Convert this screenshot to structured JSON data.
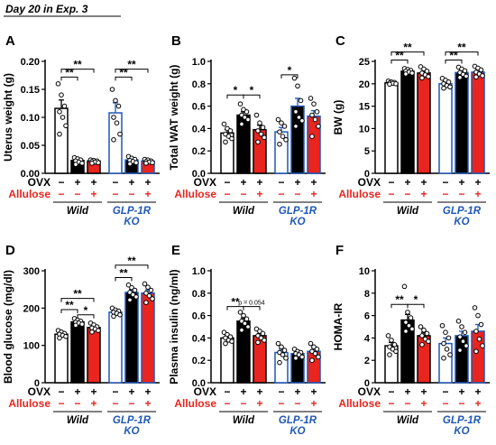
{
  "header": {
    "title": "Day 20 in Exp. 3"
  },
  "labels": {
    "ovx": "OVX",
    "allulose": "Allulose"
  },
  "genotypes": [
    "Wild",
    "GLP-1R\nKO"
  ],
  "conditions": {
    "ovx": [
      "−",
      "+",
      "+",
      "−",
      "+",
      "+"
    ],
    "allulose": [
      "−",
      "−",
      "+",
      "−",
      "−",
      "+"
    ]
  },
  "colors": {
    "ovx_label": "#000000",
    "allulose_label": "#e8251e",
    "wild_edge": "#000000",
    "ko_edge": "#1f57b8",
    "sham_fill": "#ffffff",
    "ovx_fill": "#000000",
    "allulose_fill": "#e8251e"
  },
  "chart_data": [
    {
      "type": "bar",
      "panel": "A",
      "ylabel": "Uterus weight (g)",
      "ylim": [
        0,
        0.2
      ],
      "yticks": [
        "0.00",
        "0.05",
        "0.10",
        "0.15",
        "0.20"
      ],
      "values": [
        0.116,
        0.023,
        0.022,
        0.108,
        0.024,
        0.022
      ],
      "sem": [
        0.015,
        0.003,
        0.001,
        0.018,
        0.003,
        0.001
      ],
      "points": [
        [
          0.16,
          0.14,
          0.12,
          0.11,
          0.1,
          0.085,
          0.07
        ],
        [
          0.028,
          0.026,
          0.024,
          0.022,
          0.02,
          0.018,
          0.016
        ],
        [
          0.024,
          0.023,
          0.022,
          0.021,
          0.02,
          0.019,
          0.018
        ],
        [
          0.15,
          0.13,
          0.12,
          0.1,
          0.09,
          0.07,
          0.06
        ],
        [
          0.03,
          0.027,
          0.025,
          0.023,
          0.021,
          0.019,
          0.017
        ],
        [
          0.025,
          0.024,
          0.022,
          0.021,
          0.02,
          0.019,
          0.018
        ]
      ],
      "significance": [
        {
          "from": 0,
          "to": 1,
          "y": 0.172,
          "label": "**"
        },
        {
          "from": 0,
          "to": 2,
          "y": 0.186,
          "label": "**"
        },
        {
          "from": 3,
          "to": 4,
          "y": 0.172,
          "label": "**"
        },
        {
          "from": 3,
          "to": 5,
          "y": 0.186,
          "label": "**"
        }
      ]
    },
    {
      "type": "bar",
      "panel": "B",
      "ylabel": "Total WAT weight (g)",
      "ylim": [
        0,
        1.0
      ],
      "yticks": [
        "0.0",
        "0.2",
        "0.4",
        "0.6",
        "0.8",
        "1.0"
      ],
      "values": [
        0.36,
        0.52,
        0.39,
        0.37,
        0.6,
        0.51
      ],
      "sem": [
        0.03,
        0.03,
        0.04,
        0.04,
        0.07,
        0.05
      ],
      "points": [
        [
          0.44,
          0.4,
          0.38,
          0.35,
          0.33,
          0.31,
          0.28
        ],
        [
          0.62,
          0.57,
          0.55,
          0.52,
          0.5,
          0.48,
          0.44
        ],
        [
          0.52,
          0.45,
          0.41,
          0.38,
          0.35,
          0.32,
          0.28
        ],
        [
          0.48,
          0.45,
          0.42,
          0.37,
          0.33,
          0.3,
          0.26
        ],
        [
          0.85,
          0.78,
          0.65,
          0.55,
          0.5,
          0.47,
          0.42
        ],
        [
          0.67,
          0.62,
          0.55,
          0.52,
          0.48,
          0.42,
          0.33
        ]
      ],
      "significance": [
        {
          "from": 0,
          "to": 1,
          "y": 0.7,
          "label": "*"
        },
        {
          "from": 1,
          "to": 2,
          "y": 0.7,
          "label": "*"
        },
        {
          "from": 3,
          "to": 4,
          "y": 0.88,
          "label": "*"
        }
      ]
    },
    {
      "type": "bar",
      "panel": "C",
      "ylabel": "BW (g)",
      "ylim": [
        0,
        25
      ],
      "yticks": [
        "0",
        "5",
        "10",
        "15",
        "20",
        "25"
      ],
      "values": [
        20.2,
        22.8,
        22.4,
        20.0,
        22.5,
        22.6
      ],
      "sem": [
        0.3,
        0.3,
        0.4,
        0.5,
        0.5,
        0.5
      ],
      "points": [
        [
          20.6,
          20.4,
          20.3,
          20.2,
          20.1,
          20.0,
          19.9
        ],
        [
          23.4,
          23.2,
          23.0,
          22.8,
          22.6,
          22.4,
          22.2
        ],
        [
          23.8,
          23.3,
          22.8,
          22.4,
          22.0,
          21.6,
          21.3
        ],
        [
          21.2,
          20.8,
          20.4,
          20.0,
          19.6,
          19.3,
          19.0
        ],
        [
          23.7,
          23.3,
          22.9,
          22.5,
          22.1,
          21.7,
          21.4
        ],
        [
          23.9,
          23.5,
          23.1,
          22.6,
          22.2,
          21.8,
          21.5
        ]
      ],
      "significance": [
        {
          "from": 0,
          "to": 1,
          "y": 25.3,
          "label": "**"
        },
        {
          "from": 0,
          "to": 2,
          "y": 27.1,
          "label": "**"
        },
        {
          "from": 3,
          "to": 4,
          "y": 25.3,
          "label": "**"
        },
        {
          "from": 3,
          "to": 5,
          "y": 27.1,
          "label": "**"
        }
      ]
    },
    {
      "type": "bar",
      "panel": "D",
      "ylabel": "Blood glucose (mg/dl)",
      "ylim": [
        0,
        300
      ],
      "yticks": [
        "0",
        "100",
        "200",
        "300"
      ],
      "values": [
        130,
        163,
        148,
        189,
        242,
        240
      ],
      "sem": [
        4,
        4,
        5,
        5,
        8,
        9
      ],
      "points": [
        [
          140,
          136,
          132,
          130,
          127,
          124,
          120
        ],
        [
          172,
          168,
          165,
          162,
          160,
          157,
          154
        ],
        [
          160,
          155,
          150,
          147,
          144,
          140,
          136
        ],
        [
          200,
          195,
          192,
          189,
          186,
          182,
          178
        ],
        [
          262,
          255,
          248,
          242,
          236,
          230,
          222
        ],
        [
          265,
          256,
          248,
          240,
          233,
          225,
          215
        ]
      ],
      "significance": [
        {
          "from": 1,
          "to": 2,
          "y": 182,
          "label": "*"
        },
        {
          "from": 0,
          "to": 1,
          "y": 196,
          "label": "**"
        },
        {
          "from": 0,
          "to": 2,
          "y": 226,
          "label": "**"
        },
        {
          "from": 3,
          "to": 4,
          "y": 282,
          "label": "**"
        },
        {
          "from": 3,
          "to": 5,
          "y": 315,
          "label": "**"
        }
      ]
    },
    {
      "type": "bar",
      "panel": "E",
      "ylabel": "Plasma insulin (ng/ml)",
      "ylim": [
        0,
        1.0
      ],
      "yticks": [
        "0.0",
        "0.2",
        "0.4",
        "0.6",
        "0.8",
        "1.0"
      ],
      "values": [
        0.4,
        0.55,
        0.42,
        0.27,
        0.26,
        0.28
      ],
      "sem": [
        0.02,
        0.03,
        0.02,
        0.03,
        0.02,
        0.03
      ],
      "points": [
        [
          0.45,
          0.43,
          0.41,
          0.4,
          0.38,
          0.37,
          0.35
        ],
        [
          0.63,
          0.6,
          0.57,
          0.55,
          0.53,
          0.5,
          0.47
        ],
        [
          0.48,
          0.46,
          0.44,
          0.42,
          0.4,
          0.38,
          0.36
        ],
        [
          0.35,
          0.32,
          0.29,
          0.27,
          0.25,
          0.22,
          0.18
        ],
        [
          0.3,
          0.28,
          0.27,
          0.26,
          0.25,
          0.23,
          0.22
        ],
        [
          0.35,
          0.32,
          0.3,
          0.28,
          0.26,
          0.23,
          0.2
        ]
      ],
      "significance": [
        {
          "from": 0,
          "to": 1,
          "y": 0.68,
          "label": "**"
        },
        {
          "from": 1,
          "to": 2,
          "y": 0.68,
          "label": "p = 0.054"
        }
      ]
    },
    {
      "type": "bar",
      "panel": "F",
      "ylabel": "HOMA-IR",
      "ylim": [
        0,
        10
      ],
      "yticks": [
        "0",
        "2",
        "4",
        "6",
        "8",
        "10"
      ],
      "values": [
        3.3,
        5.6,
        4.2,
        3.5,
        4.2,
        4.6
      ],
      "sem": [
        0.3,
        0.5,
        0.3,
        0.5,
        0.4,
        0.6
      ],
      "points": [
        [
          4.2,
          3.8,
          3.4,
          3.2,
          3.0,
          2.8,
          2.5
        ],
        [
          8.6,
          6.3,
          5.8,
          5.4,
          5.1,
          4.8,
          4.6
        ],
        [
          5.0,
          4.7,
          4.4,
          4.2,
          3.9,
          3.7,
          3.4
        ],
        [
          5.1,
          4.5,
          4.0,
          3.5,
          3.0,
          2.5,
          2.2
        ],
        [
          5.5,
          5.0,
          4.5,
          4.1,
          3.7,
          3.3,
          2.9
        ],
        [
          6.7,
          6.0,
          5.2,
          4.6,
          3.9,
          3.3,
          2.8
        ]
      ],
      "significance": [
        {
          "from": 0,
          "to": 1,
          "y": 7.0,
          "label": "**"
        },
        {
          "from": 1,
          "to": 2,
          "y": 7.0,
          "label": "*"
        }
      ]
    }
  ]
}
